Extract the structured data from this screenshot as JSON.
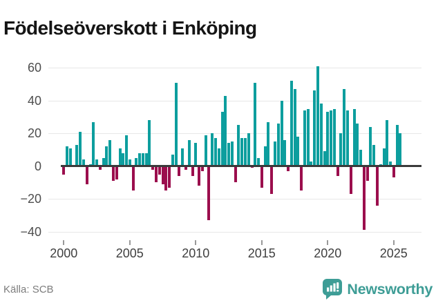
{
  "title": "Födelseöverskott i Enköping",
  "source": "Källa: SCB",
  "branding": {
    "name": "Newsworthy",
    "logo_color": "#3E9D96"
  },
  "colors": {
    "positive": "#0D9E9E",
    "negative": "#9B0E4D",
    "axis_line": "#3a3a3a",
    "gridline": "#e7e7e7",
    "y_label": "#4d4d4d",
    "x_label": "#3f3f3f",
    "title": "#151515",
    "source": "#7c7c7c"
  },
  "chart_data": {
    "type": "bar",
    "title": "Födelseöverskott i Enköping",
    "frequency": "quarterly",
    "x_start": "2000-Q1",
    "x_end": "2025-Q3",
    "values": [
      -5,
      12,
      11,
      0,
      13,
      21,
      4,
      -11,
      1,
      27,
      4,
      -2,
      5,
      12,
      16,
      -9,
      -8,
      11,
      8,
      19,
      4,
      -15,
      5,
      8,
      8,
      8,
      28,
      -2,
      -10,
      -5,
      -11,
      -15,
      -13,
      7,
      51,
      -6,
      11,
      -2,
      16,
      -6,
      14,
      -12,
      -3,
      19,
      -33,
      20,
      17,
      11,
      33,
      43,
      14,
      15,
      -10,
      25,
      17,
      17,
      20,
      -1,
      51,
      5,
      -13,
      12,
      27,
      -17,
      15,
      26,
      40,
      16,
      -3,
      52,
      47,
      18,
      -15,
      34,
      35,
      3,
      46,
      61,
      38,
      9,
      33,
      34,
      35,
      -6,
      20,
      47,
      34,
      -17,
      35,
      26,
      10,
      -39,
      -9,
      24,
      13,
      -24,
      1,
      11,
      28,
      3,
      -7,
      25,
      20
    ],
    "y_ticks": [
      60,
      40,
      20,
      0,
      -20,
      -40
    ],
    "x_ticks": [
      2000,
      2005,
      2010,
      2015,
      2020,
      2025
    ],
    "ylim": [
      -42,
      63
    ],
    "grid": "horizontal",
    "legend": "none"
  }
}
